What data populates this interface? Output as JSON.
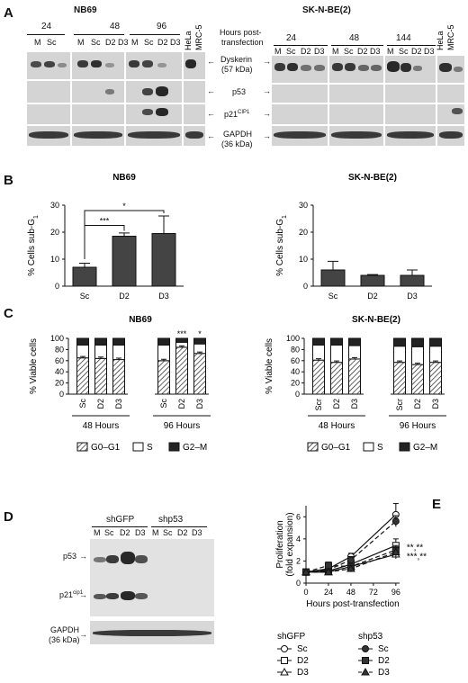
{
  "panelA": {
    "letter": "A",
    "left_title": "NB69",
    "right_title": "SK-N-BE(2)",
    "left_hours": [
      "24",
      "48",
      "96"
    ],
    "right_hours": [
      "24",
      "48",
      "144"
    ],
    "lanes": [
      "M",
      "Sc",
      "D2",
      "D3"
    ],
    "hela": "HeLa",
    "mrc5": "MRC-5",
    "hours_label_1": "Hours post-",
    "hours_label_2": "transfection",
    "markers": {
      "dyskerin_1": "Dyskerin",
      "dyskerin_2": "(57 kDa)",
      "p53": "p53",
      "p21": "p21",
      "p21_sup": "CIP1",
      "gapdh_1": "GAPDH",
      "gapdh_2": "(36 kDa)"
    }
  },
  "panelB": {
    "letter": "B",
    "charts": [
      {
        "title": "NB69",
        "ylabel": "% Cells sub-G",
        "ylabel_sub": "1",
        "categories": [
          "Sc",
          "D2",
          "D3"
        ],
        "values": [
          7,
          18.5,
          19.5
        ],
        "errors": [
          1.5,
          1.2,
          6.5
        ],
        "ylim": [
          0,
          30
        ],
        "yticks": [
          0,
          10,
          20,
          30
        ],
        "sig": [
          "***",
          "*"
        ]
      },
      {
        "title": "SK-N-BE(2)",
        "ylabel": "% Cells sub-G",
        "ylabel_sub": "1",
        "categories": [
          "Sc",
          "D2",
          "D3"
        ],
        "values": [
          6,
          4,
          4
        ],
        "errors": [
          3.2,
          0.3,
          2
        ],
        "ylim": [
          0,
          30
        ],
        "yticks": [
          0,
          10,
          20,
          30
        ]
      }
    ]
  },
  "panelC": {
    "letter": "C",
    "left_title": "NB69",
    "right_title": "SK-N-BE(2)",
    "ylabel": "% Viable cells",
    "yticks": [
      0,
      20,
      40,
      60,
      80,
      100
    ],
    "left_categories": [
      "Sc",
      "D2",
      "D3",
      "Sc",
      "D2",
      "D3"
    ],
    "right_categories": [
      "Scr",
      "D2",
      "D3",
      "Scr",
      "D2",
      "D3"
    ],
    "groups": [
      "48 Hours",
      "96 Hours"
    ],
    "sig": [
      "***",
      "*"
    ],
    "legend": {
      "g0g1": "G0–G1",
      "s": "S",
      "g2m": "G2–M"
    }
  },
  "panelD": {
    "letter": "D",
    "shGFP": "shGFP",
    "shp53": "shp53",
    "lanes": [
      "M",
      "Sc",
      "D2",
      "D3",
      "M",
      "Sc",
      "D2",
      "D3"
    ],
    "p53": "p53",
    "p21": "p21",
    "p21_sup": "cip1",
    "gapdh_1": "GAPDH",
    "gapdh_2": "(36 kDa)"
  },
  "panelE": {
    "letter": "E",
    "ylabel_1": "Proliferation",
    "ylabel_2": "(fold expansion)",
    "xlabel": "Hours post-transfection",
    "xticks": [
      0,
      24,
      48,
      72,
      96
    ],
    "yticks": [
      0,
      2,
      4,
      6
    ],
    "sig1": "**,**",
    "sig2": "***,**",
    "legend_left_title": "shGFP",
    "legend_right_title": "shp53",
    "legend_items": [
      "Sc",
      "D2",
      "D3"
    ]
  },
  "chart_data": [
    {
      "type": "bar",
      "title": "NB69",
      "ylabel": "% Cells sub-G1",
      "categories": [
        "Sc",
        "D2",
        "D3"
      ],
      "values": [
        7,
        18.5,
        19.5
      ],
      "errors": [
        1.5,
        1.2,
        6.5
      ],
      "ylim": [
        0,
        30
      ]
    },
    {
      "type": "bar",
      "title": "SK-N-BE(2)",
      "ylabel": "% Cells sub-G1",
      "categories": [
        "Sc",
        "D2",
        "D3"
      ],
      "values": [
        6,
        4,
        4
      ],
      "errors": [
        3.2,
        0.3,
        2
      ],
      "ylim": [
        0,
        30
      ]
    },
    {
      "type": "bar",
      "title": "NB69",
      "ylabel": "% Viable cells",
      "categories": [
        "Sc",
        "D2",
        "D3",
        "Sc",
        "D2",
        "D3"
      ],
      "groups": [
        "48 Hours",
        "48 Hours",
        "48 Hours",
        "96 Hours",
        "96 Hours",
        "96 Hours"
      ],
      "series": [
        {
          "name": "G0–G1",
          "values": [
            65,
            64,
            62,
            60,
            84,
            73
          ]
        },
        {
          "name": "S",
          "values": [
            23,
            24,
            26,
            28,
            9,
            17
          ]
        },
        {
          "name": "G2–M",
          "values": [
            12,
            12,
            12,
            12,
            7,
            10
          ]
        }
      ],
      "ylim": [
        0,
        100
      ]
    },
    {
      "type": "bar",
      "title": "SK-N-BE(2)",
      "ylabel": "% Viable cells",
      "categories": [
        "Scr",
        "D2",
        "D3",
        "Scr",
        "D2",
        "D3"
      ],
      "groups": [
        "48 Hours",
        "48 Hours",
        "48 Hours",
        "96 Hours",
        "96 Hours",
        "96 Hours"
      ],
      "series": [
        {
          "name": "G0–G1",
          "values": [
            61,
            57,
            63,
            57,
            53,
            57
          ]
        },
        {
          "name": "S",
          "values": [
            27,
            31,
            24,
            29,
            32,
            29
          ]
        },
        {
          "name": "G2–M",
          "values": [
            12,
            12,
            13,
            14,
            15,
            14
          ]
        }
      ],
      "ylim": [
        0,
        100
      ]
    },
    {
      "type": "line",
      "xlabel": "Hours post-transfection",
      "ylabel": "Proliferation (fold expansion)",
      "x": [
        0,
        24,
        48,
        96
      ],
      "series": [
        {
          "name": "shGFP Sc",
          "values": [
            1,
            1.3,
            2.4,
            6.2
          ],
          "errors": [
            0,
            0.2,
            0.3,
            1.0
          ]
        },
        {
          "name": "shGFP D2",
          "values": [
            1,
            1.1,
            1.7,
            3.4
          ],
          "errors": [
            0,
            0.2,
            0.3,
            0.6
          ]
        },
        {
          "name": "shGFP D3",
          "values": [
            1,
            1.0,
            1.5,
            2.6
          ],
          "errors": [
            0,
            0.2,
            0.3,
            0.4
          ]
        },
        {
          "name": "shp53 Sc",
          "values": [
            1,
            1.2,
            2.1,
            5.6
          ],
          "errors": [
            0,
            0.2,
            0.3,
            0.5
          ]
        },
        {
          "name": "shp53 D2",
          "values": [
            1,
            1.6,
            1.5,
            3.0
          ],
          "errors": [
            0,
            0.3,
            0.3,
            0.4
          ]
        },
        {
          "name": "shp53 D3",
          "values": [
            1,
            1.0,
            1.3,
            2.8
          ],
          "errors": [
            0,
            0.2,
            0.3,
            0.4
          ]
        }
      ],
      "xlim": [
        0,
        100
      ],
      "ylim": [
        0,
        7
      ]
    }
  ]
}
